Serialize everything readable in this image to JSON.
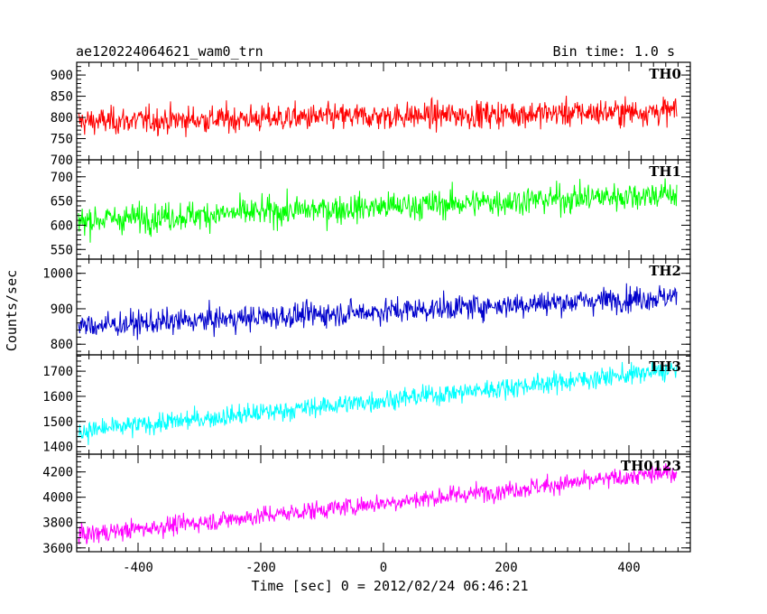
{
  "header": {
    "title": "ae120224064621_wam0_trn",
    "bin_time": "Bin time: 1.0 s"
  },
  "chart_data": {
    "type": "line",
    "title": "ae120224064621_wam0_trn",
    "subtitle": "Bin time: 1.0 s",
    "xlabel": "Time [sec] 0 = 2012/02/24 06:46:21",
    "ylabel": "Counts/sec",
    "xlim": [
      -500,
      500
    ],
    "xticks": [
      -400,
      -200,
      0,
      200,
      400
    ],
    "grid": false,
    "panels": [
      {
        "name": "TH0",
        "color": "#ff0000",
        "ylim": [
          700,
          930
        ],
        "yticks": [
          700,
          750,
          800,
          850,
          900
        ],
        "series": {
          "x_start": -497,
          "x_end": 478,
          "mean_start": 790,
          "mean_end": 815,
          "noise": 30,
          "min": 700,
          "max": 930
        }
      },
      {
        "name": "TH1",
        "color": "#00ff00",
        "ylim": [
          530,
          735
        ],
        "yticks": [
          550,
          600,
          650,
          700
        ],
        "series": {
          "x_start": -497,
          "x_end": 478,
          "mean_start": 610,
          "mean_end": 665,
          "noise": 28,
          "min": 530,
          "max": 735
        }
      },
      {
        "name": "TH2",
        "color": "#0000cc",
        "ylim": [
          770,
          1040
        ],
        "yticks": [
          800,
          900,
          1000
        ],
        "series": {
          "x_start": -497,
          "x_end": 478,
          "mean_start": 850,
          "mean_end": 935,
          "noise": 33,
          "min": 770,
          "max": 1040
        }
      },
      {
        "name": "TH3",
        "color": "#00ffff",
        "ylim": [
          1370,
          1765
        ],
        "yticks": [
          1400,
          1500,
          1600,
          1700
        ],
        "series": {
          "x_start": -497,
          "x_end": 478,
          "mean_start": 1460,
          "mean_end": 1705,
          "noise": 38,
          "min": 1370,
          "max": 1765
        }
      },
      {
        "name": "TH0123",
        "color": "#ff00ff",
        "ylim": [
          3570,
          4340
        ],
        "yticks": [
          3600,
          3800,
          4000,
          4200
        ],
        "series": {
          "x_start": -497,
          "x_end": 478,
          "mean_start": 3700,
          "mean_end": 4200,
          "noise": 70,
          "min": 3570,
          "max": 4340
        }
      }
    ]
  }
}
